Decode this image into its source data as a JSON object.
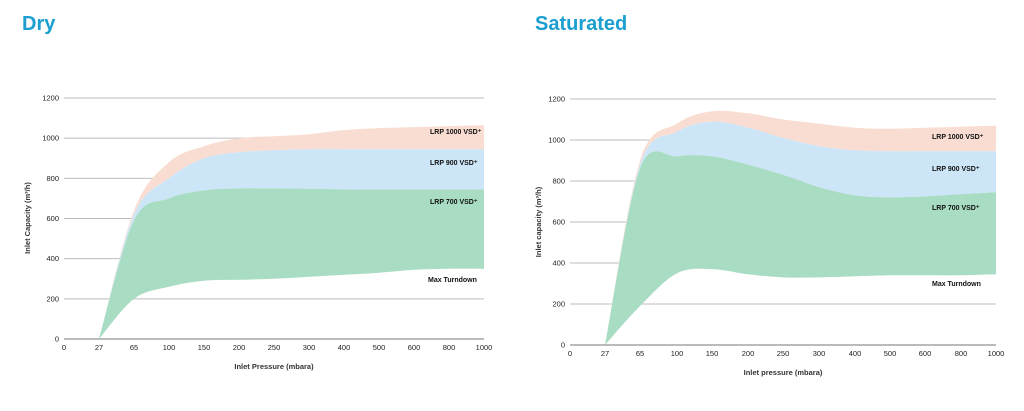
{
  "chart_data": [
    {
      "type": "area",
      "title": "Dry",
      "xlabel": "Inlet Pressure (mbara)",
      "ylabel": "Inlet Capacity (m³/h)",
      "x_ticks": [
        "0",
        "27",
        "65",
        "100",
        "150",
        "200",
        "250",
        "300",
        "400",
        "500",
        "600",
        "800",
        "1000"
      ],
      "ylim": [
        0,
        1200
      ],
      "y_ticks": [
        0,
        200,
        400,
        600,
        800,
        1000,
        1200
      ],
      "grid": "horizontal",
      "colors": {
        "series_1": "#f9ddd2",
        "series_2": "#cce6f7",
        "series_3": "#a8dcc3"
      },
      "series": [
        {
          "name": "LRP 1000 VSD⁺",
          "x": [
            "27",
            "65",
            "100",
            "150",
            "200",
            "250",
            "300",
            "400",
            "500",
            "600",
            "800",
            "1000"
          ],
          "values": [
            0,
            640,
            880,
            960,
            1000,
            1010,
            1020,
            1040,
            1050,
            1055,
            1060,
            1065
          ]
        },
        {
          "name": "LRP 900 VSD⁺",
          "x": [
            "27",
            "65",
            "100",
            "150",
            "200",
            "250",
            "300",
            "400",
            "500",
            "600",
            "800",
            "1000"
          ],
          "values": [
            0,
            620,
            800,
            900,
            930,
            940,
            945,
            945,
            945,
            945,
            945,
            945
          ]
        },
        {
          "name": "LRP 700 VSD⁺",
          "x": [
            "27",
            "65",
            "100",
            "150",
            "200",
            "250",
            "300",
            "400",
            "500",
            "600",
            "800",
            "1000"
          ],
          "values": [
            0,
            590,
            700,
            740,
            750,
            750,
            748,
            745,
            745,
            745,
            745,
            745
          ]
        },
        {
          "name": "Max Turndown",
          "x": [
            "27",
            "65",
            "100",
            "150",
            "200",
            "250",
            "300",
            "400",
            "500",
            "600",
            "800",
            "1000"
          ],
          "values": [
            0,
            200,
            260,
            290,
            295,
            300,
            310,
            320,
            330,
            345,
            350,
            350
          ]
        }
      ]
    },
    {
      "type": "area",
      "title": "Saturated",
      "xlabel": "Inlet pressure (mbara)",
      "ylabel": "Inlet capacity (m³/h)",
      "x_ticks": [
        "0",
        "27",
        "65",
        "100",
        "150",
        "200",
        "250",
        "300",
        "400",
        "500",
        "600",
        "800",
        "1000"
      ],
      "ylim": [
        0,
        1200
      ],
      "y_ticks": [
        0,
        200,
        400,
        600,
        800,
        1000,
        1200
      ],
      "grid": "horizontal",
      "colors": {
        "series_1": "#f9ddd2",
        "series_2": "#cce6f7",
        "series_3": "#a8dcc3"
      },
      "series": [
        {
          "name": "LRP 1000 VSD⁺",
          "x": [
            "27",
            "65",
            "100",
            "150",
            "200",
            "250",
            "300",
            "400",
            "500",
            "600",
            "800",
            "1000"
          ],
          "values": [
            0,
            900,
            1080,
            1140,
            1130,
            1100,
            1080,
            1060,
            1055,
            1060,
            1065,
            1070
          ]
        },
        {
          "name": "LRP 900 VSD⁺",
          "x": [
            "27",
            "65",
            "100",
            "150",
            "200",
            "250",
            "300",
            "400",
            "500",
            "600",
            "800",
            "1000"
          ],
          "values": [
            0,
            880,
            1040,
            1090,
            1060,
            1010,
            970,
            950,
            945,
            945,
            945,
            945
          ]
        },
        {
          "name": "LRP 700 VSD⁺",
          "x": [
            "27",
            "65",
            "100",
            "150",
            "200",
            "250",
            "300",
            "400",
            "500",
            "600",
            "800",
            "1000"
          ],
          "values": [
            0,
            860,
            920,
            920,
            880,
            830,
            770,
            730,
            720,
            725,
            735,
            745
          ]
        },
        {
          "name": "Max Turndown",
          "x": [
            "27",
            "65",
            "100",
            "150",
            "200",
            "250",
            "300",
            "400",
            "500",
            "600",
            "800",
            "1000"
          ],
          "values": [
            0,
            190,
            350,
            370,
            345,
            330,
            330,
            335,
            340,
            340,
            340,
            345
          ]
        }
      ]
    }
  ]
}
